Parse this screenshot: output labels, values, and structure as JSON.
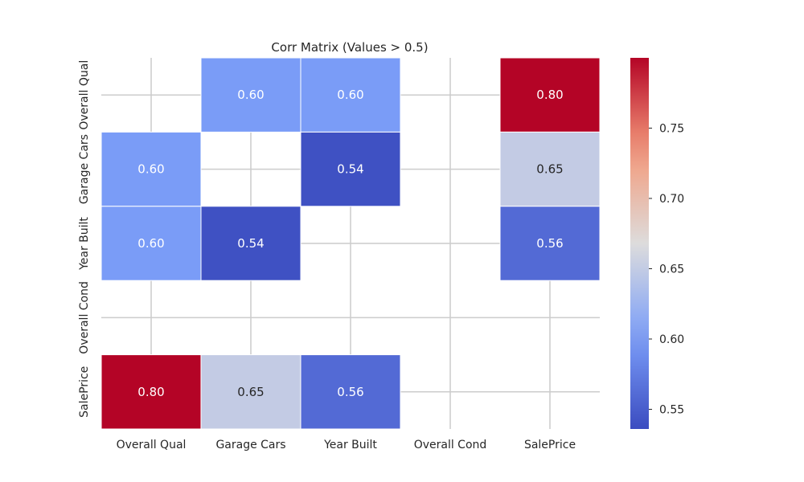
{
  "chart_data": {
    "type": "heatmap",
    "title": "Corr Matrix (Values > 0.5)",
    "xlabel": "",
    "ylabel": "",
    "x_categories": [
      "Overall Qual",
      "Garage Cars",
      "Year Built",
      "Overall Cond",
      "SalePrice"
    ],
    "y_categories": [
      "Overall Qual",
      "Garage Cars",
      "Year Built",
      "Overall Cond",
      "SalePrice"
    ],
    "values": [
      [
        null,
        0.6,
        0.6,
        null,
        0.8
      ],
      [
        0.6,
        null,
        0.54,
        null,
        0.65
      ],
      [
        0.6,
        0.54,
        null,
        null,
        0.56
      ],
      [
        null,
        null,
        null,
        null,
        null
      ],
      [
        0.8,
        0.65,
        0.56,
        null,
        null
      ]
    ],
    "value_labels": [
      [
        "",
        "0.60",
        "0.60",
        "",
        "0.80"
      ],
      [
        "0.60",
        "",
        "0.54",
        "",
        "0.65"
      ],
      [
        "0.60",
        "0.54",
        "",
        "",
        "0.56"
      ],
      [
        "",
        "",
        "",
        "",
        ""
      ],
      [
        "0.80",
        "0.65",
        "0.56",
        "",
        ""
      ]
    ],
    "colormap": "coolwarm",
    "colorbar": {
      "range": [
        0.536,
        0.8
      ],
      "ticks": [
        0.55,
        0.6,
        0.65,
        0.7,
        0.75
      ],
      "tick_labels": [
        "0.55",
        "0.60",
        "0.65",
        "0.70",
        "0.75"
      ]
    },
    "grid": true,
    "colors": {
      "low": "#3b4cc0",
      "mid": "#dddcdc",
      "high": "#b40426",
      "grid": "#cccccc"
    }
  }
}
